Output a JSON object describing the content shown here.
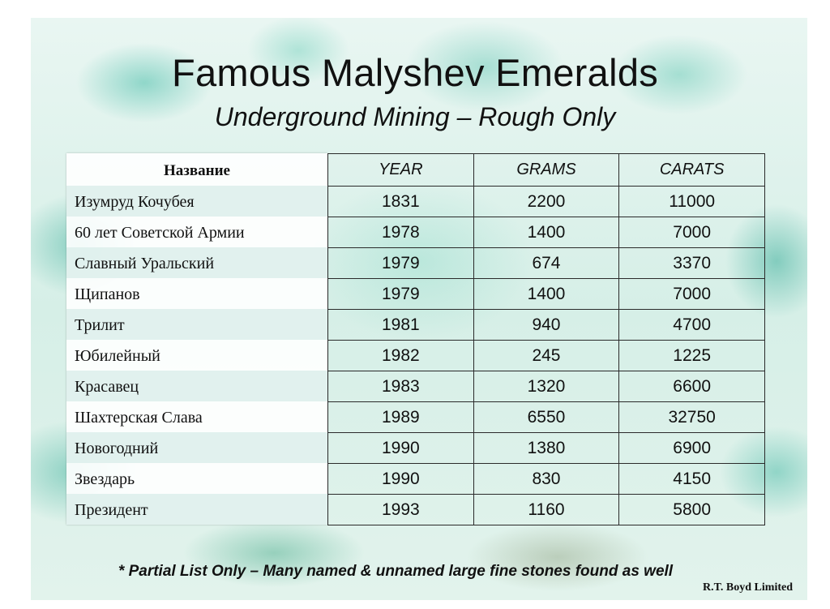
{
  "title": "Famous Malyshev Emeralds",
  "subtitle": "Underground Mining – Rough Only",
  "table": {
    "name_header": "Название",
    "headers": [
      "YEAR",
      "GRAMS",
      "CARATS"
    ],
    "rows": [
      {
        "name": "Изумруд Кочубея",
        "year": "1831",
        "grams": "2200",
        "carats": "11000"
      },
      {
        "name": "60 лет Советской Армии",
        "year": "1978",
        "grams": "1400",
        "carats": "7000"
      },
      {
        "name": "Славный Уральский",
        "year": "1979",
        "grams": "674",
        "carats": "3370"
      },
      {
        "name": "Щипанов",
        "year": "1979",
        "grams": "1400",
        "carats": "7000"
      },
      {
        "name": "Трилит",
        "year": "1981",
        "grams": "940",
        "carats": "4700"
      },
      {
        "name": "Юбилейный",
        "year": "1982",
        "grams": "245",
        "carats": "1225"
      },
      {
        "name": "Красавец",
        "year": "1983",
        "grams": "1320",
        "carats": "6600"
      },
      {
        "name": "Шахтерская Слава",
        "year": "1989",
        "grams": "6550",
        "carats": "32750"
      },
      {
        "name": "Новогодний",
        "year": "1990",
        "grams": "1380",
        "carats": "6900"
      },
      {
        "name": "Звездарь",
        "year": "1990",
        "grams": "830",
        "carats": "4150"
      },
      {
        "name": "Президент",
        "year": "1993",
        "grams": "1160",
        "carats": "5800"
      }
    ]
  },
  "footnote": "* Partial List Only – Many named & unnamed large fine stones found as well",
  "credit": "R.T. Boyd Limited"
}
